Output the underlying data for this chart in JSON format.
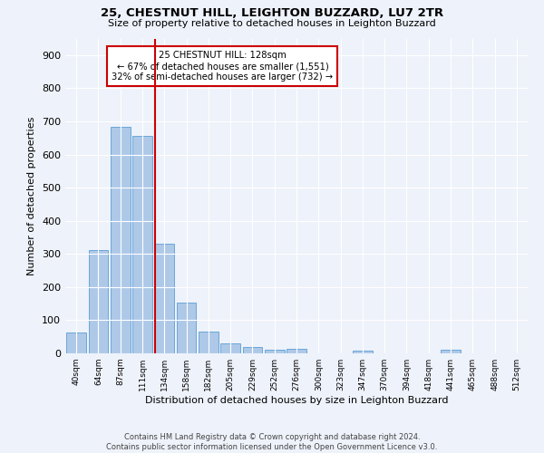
{
  "title": "25, CHESTNUT HILL, LEIGHTON BUZZARD, LU7 2TR",
  "subtitle": "Size of property relative to detached houses in Leighton Buzzard",
  "xlabel": "Distribution of detached houses by size in Leighton Buzzard",
  "ylabel": "Number of detached properties",
  "footer_line1": "Contains HM Land Registry data © Crown copyright and database right 2024.",
  "footer_line2": "Contains public sector information licensed under the Open Government Licence v3.0.",
  "bar_labels": [
    "40sqm",
    "64sqm",
    "87sqm",
    "111sqm",
    "134sqm",
    "158sqm",
    "182sqm",
    "205sqm",
    "229sqm",
    "252sqm",
    "276sqm",
    "300sqm",
    "323sqm",
    "347sqm",
    "370sqm",
    "394sqm",
    "418sqm",
    "441sqm",
    "465sqm",
    "488sqm",
    "512sqm"
  ],
  "bar_values": [
    63,
    311,
    684,
    655,
    330,
    152,
    65,
    30,
    20,
    12,
    14,
    0,
    0,
    7,
    0,
    0,
    0,
    10,
    0,
    0,
    0
  ],
  "bar_color": "#aec8e8",
  "bar_edge_color": "#5a9fd4",
  "annotation_line1": "25 CHESTNUT HILL: 128sqm",
  "annotation_line2": "← 67% of detached houses are smaller (1,551)",
  "annotation_line3": "32% of semi-detached houses are larger (732) →",
  "vline_color": "#cc0000",
  "annotation_box_color": "#ffffff",
  "annotation_box_edge": "#cc0000",
  "background_color": "#eef2fa",
  "ylim": [
    0,
    950
  ],
  "yticks": [
    0,
    100,
    200,
    300,
    400,
    500,
    600,
    700,
    800,
    900
  ]
}
